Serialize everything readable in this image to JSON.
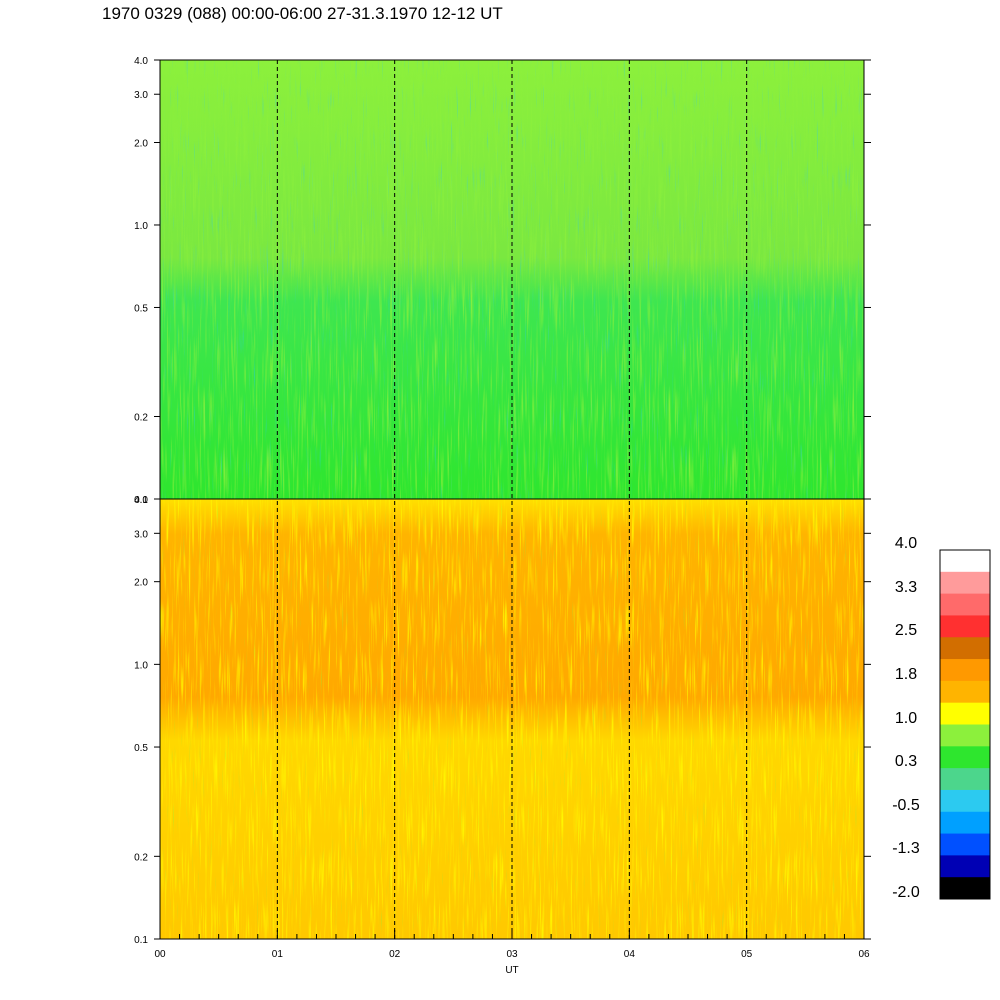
{
  "chart_data": {
    "type": "heatmap",
    "title": "1970 0329 (088) 00:00-06:00 27-31.3.1970  12-12 UT",
    "xlabel": "UT",
    "x_ticks": [
      "00",
      "01",
      "02",
      "03",
      "04",
      "05",
      "06"
    ],
    "x_range": [
      0,
      6
    ],
    "y_scale": "log",
    "y_range": [
      0.1,
      4.0
    ],
    "y_ticks": [
      "0.1",
      "0.2",
      "0.5",
      "1.0",
      "2.0",
      "3.0",
      "4.0"
    ],
    "y_tick_values": [
      0.1,
      0.2,
      0.5,
      1.0,
      2.0,
      3.0,
      4.0
    ],
    "hour_dividers": [
      1,
      2,
      3,
      4,
      5
    ],
    "panels": [
      {
        "name": "upper",
        "dominant_level": 0.3,
        "description_colors": [
          "#2ee62e",
          "#8cf03c",
          "#4cd68c",
          "#2ccaf0"
        ]
      },
      {
        "name": "lower",
        "dominant_level": 1.5,
        "description_colors": [
          "#ffb400",
          "#ffff00",
          "#ff9900",
          "#8cf03c"
        ]
      }
    ],
    "colorbar": {
      "labels": [
        "4.0",
        "3.3",
        "2.5",
        "1.8",
        "1.0",
        "0.3",
        "-0.5",
        "-1.3",
        "-2.0"
      ],
      "colors": [
        "#ffffff",
        "#ff9b9b",
        "#ff6a6a",
        "#ff3030",
        "#d26e00",
        "#ff9900",
        "#ffb400",
        "#ffff00",
        "#8cf03c",
        "#2ee62e",
        "#4cd68c",
        "#2ccaf0",
        "#00a0ff",
        "#0050ff",
        "#0000b4",
        "#000000"
      ]
    }
  }
}
